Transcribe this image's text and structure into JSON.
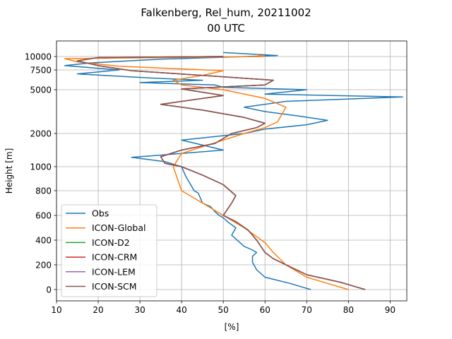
{
  "chart_data": {
    "type": "line",
    "title": "Falkenberg, Rel_hum, 20211002",
    "subtitle": "00 UTC",
    "xlabel": "[%]",
    "ylabel": "Height [m]",
    "xlim": [
      10,
      94
    ],
    "xticks": [
      "10",
      "20",
      "30",
      "40",
      "50",
      "60",
      "70",
      "80",
      "90"
    ],
    "yticks": [
      "0",
      "200",
      "400",
      "600",
      "800",
      "1000",
      "2000",
      "5000",
      "7500",
      "10000"
    ],
    "grid": true,
    "legend_position": "lower-left",
    "colors": {
      "Obs": "#1f77b4",
      "ICON-Global": "#ff7f0e",
      "ICON-D2": "#2ca02c",
      "ICON-CRM": "#d62728",
      "ICON-LEM": "#9467bd",
      "ICON-SCM": "#8c564b"
    },
    "legend": [
      "Obs",
      "ICON-Global",
      "ICON-D2",
      "ICON-CRM",
      "ICON-LEM",
      "ICON-SCM"
    ],
    "series": [
      {
        "name": "Obs",
        "points": [
          [
            71,
            0
          ],
          [
            70,
            10
          ],
          [
            66,
            50
          ],
          [
            60,
            100
          ],
          [
            58,
            160
          ],
          [
            57,
            220
          ],
          [
            57,
            270
          ],
          [
            58,
            300
          ],
          [
            57,
            320
          ],
          [
            55,
            350
          ],
          [
            52,
            440
          ],
          [
            53,
            500
          ],
          [
            51,
            550
          ],
          [
            50,
            580
          ],
          [
            49,
            600
          ],
          [
            48,
            630
          ],
          [
            47,
            670
          ],
          [
            45,
            700
          ],
          [
            44,
            780
          ],
          [
            43,
            800
          ],
          [
            42,
            860
          ],
          [
            41,
            920
          ],
          [
            40,
            1000
          ],
          [
            36,
            1150
          ],
          [
            28,
            1280
          ],
          [
            35,
            1350
          ],
          [
            50,
            1500
          ],
          [
            45,
            1650
          ],
          [
            40,
            1800
          ],
          [
            55,
            2000
          ],
          [
            60,
            2300
          ],
          [
            70,
            2600
          ],
          [
            75,
            2900
          ],
          [
            68,
            3200
          ],
          [
            60,
            3500
          ],
          [
            55,
            3800
          ],
          [
            65,
            4200
          ],
          [
            93,
            4500
          ],
          [
            60,
            4700
          ],
          [
            70,
            5000
          ],
          [
            50,
            5300
          ],
          [
            48,
            5600
          ],
          [
            30,
            5900
          ],
          [
            45,
            6200
          ],
          [
            32,
            6500
          ],
          [
            15,
            7000
          ],
          [
            25,
            7500
          ],
          [
            12,
            8300
          ],
          [
            18,
            8800
          ],
          [
            35,
            9500
          ],
          [
            63,
            10200
          ],
          [
            50,
            10800
          ]
        ]
      },
      {
        "name": "ICON-Global",
        "points": [
          [
            80,
            0
          ],
          [
            75,
            50
          ],
          [
            70,
            100
          ],
          [
            65,
            200
          ],
          [
            62,
            300
          ],
          [
            60,
            380
          ],
          [
            55,
            500
          ],
          [
            50,
            600
          ],
          [
            45,
            700
          ],
          [
            40,
            800
          ],
          [
            39,
            900
          ],
          [
            38,
            1000
          ],
          [
            40,
            1400
          ],
          [
            45,
            1600
          ],
          [
            55,
            2000
          ],
          [
            60,
            2400
          ],
          [
            63,
            2800
          ],
          [
            64,
            3300
          ],
          [
            65,
            3800
          ],
          [
            60,
            4400
          ],
          [
            50,
            5000
          ],
          [
            40,
            5600
          ],
          [
            38,
            6200
          ],
          [
            45,
            6800
          ],
          [
            50,
            7400
          ],
          [
            25,
            8200
          ],
          [
            15,
            9000
          ],
          [
            12,
            9600
          ],
          [
            60,
            10000
          ],
          [
            58,
            10400
          ]
        ]
      },
      {
        "name": "ICON-D2",
        "points": [
          [
            84,
            0
          ],
          [
            78,
            60
          ],
          [
            70,
            120
          ],
          [
            62,
            250
          ],
          [
            60,
            300
          ],
          [
            59,
            350
          ],
          [
            58,
            400
          ],
          [
            56,
            480
          ],
          [
            53,
            550
          ],
          [
            50,
            600
          ],
          [
            51,
            650
          ],
          [
            52,
            700
          ],
          [
            53,
            760
          ],
          [
            50,
            850
          ],
          [
            45,
            930
          ],
          [
            40,
            1000
          ],
          [
            36,
            1100
          ],
          [
            35,
            1300
          ],
          [
            40,
            1500
          ],
          [
            48,
            1700
          ],
          [
            52,
            2000
          ],
          [
            58,
            2400
          ],
          [
            60,
            2700
          ],
          [
            55,
            3100
          ],
          [
            45,
            3600
          ],
          [
            35,
            4000
          ],
          [
            50,
            4600
          ],
          [
            40,
            5100
          ],
          [
            60,
            5600
          ],
          [
            62,
            6200
          ],
          [
            45,
            6800
          ],
          [
            28,
            7400
          ],
          [
            20,
            8300
          ],
          [
            15,
            9200
          ],
          [
            20,
            9800
          ],
          [
            50,
            10000
          ]
        ]
      },
      {
        "name": "ICON-CRM",
        "points": [
          [
            84,
            0
          ],
          [
            78,
            60
          ],
          [
            70,
            120
          ],
          [
            62,
            250
          ],
          [
            60,
            300
          ],
          [
            59,
            350
          ],
          [
            58,
            400
          ],
          [
            56,
            480
          ],
          [
            53,
            550
          ],
          [
            50,
            600
          ],
          [
            51,
            650
          ],
          [
            52,
            700
          ],
          [
            53,
            760
          ],
          [
            50,
            850
          ],
          [
            45,
            930
          ],
          [
            40,
            1000
          ],
          [
            36,
            1100
          ],
          [
            35,
            1300
          ],
          [
            40,
            1500
          ],
          [
            48,
            1700
          ],
          [
            52,
            2000
          ],
          [
            58,
            2400
          ],
          [
            60,
            2700
          ],
          [
            55,
            3100
          ],
          [
            45,
            3600
          ],
          [
            35,
            4000
          ],
          [
            50,
            4600
          ],
          [
            40,
            5100
          ],
          [
            60,
            5600
          ],
          [
            62,
            6200
          ],
          [
            45,
            6800
          ],
          [
            28,
            7400
          ],
          [
            20,
            8300
          ],
          [
            15,
            9200
          ],
          [
            20,
            9800
          ],
          [
            50,
            10000
          ]
        ]
      },
      {
        "name": "ICON-LEM",
        "points": [
          [
            84,
            0
          ],
          [
            78,
            60
          ],
          [
            70,
            120
          ],
          [
            62,
            250
          ],
          [
            60,
            300
          ],
          [
            59,
            350
          ],
          [
            58,
            400
          ],
          [
            56,
            480
          ],
          [
            53,
            550
          ],
          [
            50,
            600
          ],
          [
            51,
            650
          ],
          [
            52,
            700
          ],
          [
            53,
            760
          ],
          [
            50,
            850
          ],
          [
            45,
            930
          ],
          [
            40,
            1000
          ],
          [
            36,
            1100
          ],
          [
            35,
            1300
          ],
          [
            40,
            1500
          ],
          [
            48,
            1700
          ],
          [
            52,
            2000
          ],
          [
            58,
            2400
          ],
          [
            60,
            2700
          ],
          [
            55,
            3100
          ],
          [
            45,
            3600
          ],
          [
            35,
            4000
          ],
          [
            50,
            4600
          ],
          [
            40,
            5100
          ],
          [
            60,
            5600
          ],
          [
            62,
            6200
          ],
          [
            45,
            6800
          ],
          [
            28,
            7400
          ],
          [
            20,
            8300
          ],
          [
            15,
            9200
          ],
          [
            20,
            9800
          ],
          [
            50,
            10000
          ]
        ]
      },
      {
        "name": "ICON-SCM",
        "points": [
          [
            84,
            0
          ],
          [
            78,
            60
          ],
          [
            70,
            120
          ],
          [
            62,
            250
          ],
          [
            60,
            300
          ],
          [
            59,
            350
          ],
          [
            58,
            400
          ],
          [
            56,
            480
          ],
          [
            53,
            550
          ],
          [
            50,
            600
          ],
          [
            51,
            650
          ],
          [
            52,
            700
          ],
          [
            53,
            760
          ],
          [
            50,
            850
          ],
          [
            45,
            930
          ],
          [
            40,
            1000
          ],
          [
            36,
            1100
          ],
          [
            35,
            1300
          ],
          [
            40,
            1500
          ],
          [
            48,
            1700
          ],
          [
            52,
            2000
          ],
          [
            58,
            2400
          ],
          [
            60,
            2700
          ],
          [
            55,
            3100
          ],
          [
            45,
            3600
          ],
          [
            35,
            4000
          ],
          [
            50,
            4600
          ],
          [
            40,
            5100
          ],
          [
            60,
            5600
          ],
          [
            62,
            6200
          ],
          [
            45,
            6800
          ],
          [
            28,
            7400
          ],
          [
            20,
            8300
          ],
          [
            15,
            9200
          ],
          [
            20,
            9800
          ],
          [
            50,
            10000
          ]
        ]
      }
    ]
  }
}
